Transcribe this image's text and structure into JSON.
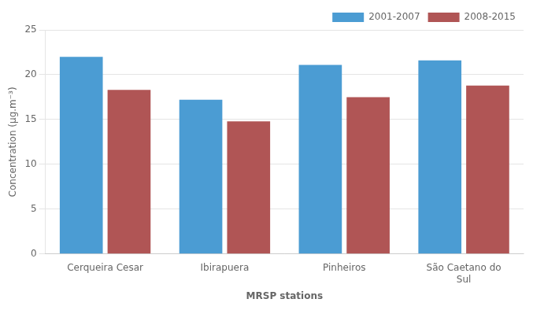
{
  "chart_data": {
    "type": "bar",
    "categories": [
      "Cerqueira Cesar",
      "Ibirapuera",
      "Pinheiros",
      "São Caetano do\nSul"
    ],
    "series": [
      {
        "name": "2001-2007",
        "color": "#4b9cd3",
        "values": [
          22.0,
          17.2,
          21.1,
          21.6
        ]
      },
      {
        "name": "2008-2015",
        "color": "#b05555",
        "values": [
          18.3,
          14.8,
          17.5,
          18.8
        ]
      }
    ],
    "xlabel": "MRSP stations",
    "ylabel": "Concentration (μg.m⁻³)",
    "ylim": [
      0,
      25
    ],
    "yticks": [
      0,
      5,
      10,
      15,
      20,
      25
    ],
    "grid": true,
    "legend": "upper right"
  }
}
